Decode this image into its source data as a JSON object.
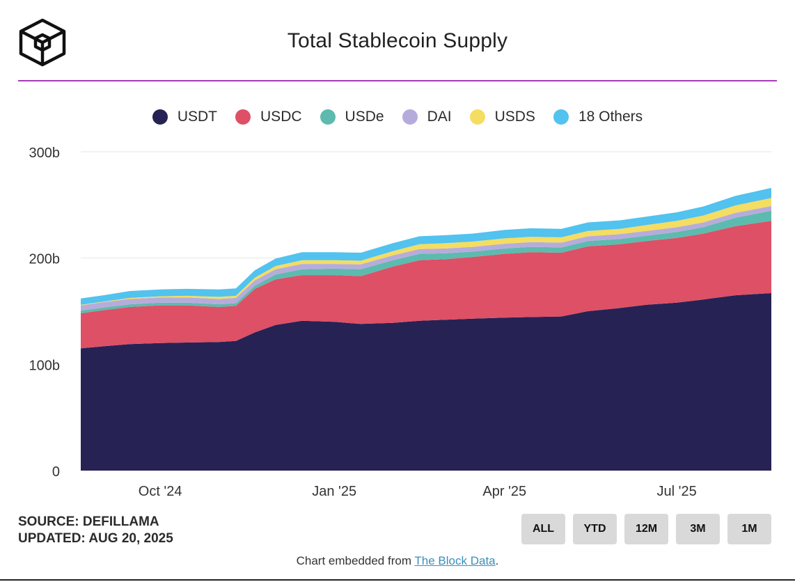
{
  "header": {
    "title": "Total Stablecoin Supply"
  },
  "footer": {
    "source": "SOURCE: DEFILLAMA",
    "updated": "UPDATED: AUG 20, 2025",
    "embed_prefix": "Chart embedded from ",
    "embed_link": "The Block Data",
    "embed_suffix": "."
  },
  "range_buttons": [
    "ALL",
    "YTD",
    "12M",
    "3M",
    "1M"
  ],
  "colors": {
    "USDT": "#272254",
    "USDC": "#dd5066",
    "USDe": "#5cbbae",
    "DAI": "#b6acdb",
    "USDS": "#f4dd61",
    "18 Others": "#52c2ee",
    "divider": "#a53bb7"
  },
  "chart_data": {
    "type": "area",
    "stacked": true,
    "title": "Total Stablecoin Supply",
    "x": [
      "2024-08-20",
      "2024-09-01",
      "2024-09-15",
      "2024-10-01",
      "2024-10-15",
      "2024-11-01",
      "2024-11-10",
      "2024-11-20",
      "2024-12-01",
      "2024-12-15",
      "2025-01-01",
      "2025-01-15",
      "2025-02-01",
      "2025-02-15",
      "2025-03-01",
      "2025-03-15",
      "2025-04-01",
      "2025-04-15",
      "2025-05-01",
      "2025-05-15",
      "2025-06-01",
      "2025-06-15",
      "2025-07-01",
      "2025-07-15",
      "2025-08-01",
      "2025-08-20"
    ],
    "series": [
      {
        "name": "USDT",
        "values": [
          115,
          117,
          119,
          120,
          120.5,
          121,
          122,
          130,
          137,
          141,
          140,
          138,
          139,
          141,
          142,
          143,
          144,
          144.5,
          145,
          150,
          153,
          156,
          158,
          161,
          165,
          167
        ]
      },
      {
        "name": "USDC",
        "values": [
          33,
          34,
          35,
          35.5,
          35,
          33,
          33,
          41,
          43,
          43,
          44,
          45,
          53,
          57,
          57,
          58,
          60,
          61,
          60,
          61,
          60,
          60,
          61,
          62,
          65,
          68
        ]
      },
      {
        "name": "USDe",
        "values": [
          2.5,
          2.5,
          2.5,
          2.5,
          2.5,
          2.5,
          2.5,
          3,
          4.5,
          5.5,
          6,
          6.5,
          6,
          6,
          5.5,
          5,
          5,
          5,
          5,
          5,
          5,
          5,
          5.5,
          6,
          8,
          9.5
        ]
      },
      {
        "name": "DAI",
        "values": [
          5,
          5,
          5,
          5,
          5,
          5,
          5,
          5,
          5,
          5,
          4.5,
          4.5,
          4.5,
          4.5,
          4.5,
          4.5,
          4.5,
          4.5,
          4.5,
          4.5,
          4.5,
          4.5,
          4.5,
          4.5,
          4.5,
          4.5
        ]
      },
      {
        "name": "USDS",
        "values": [
          0.5,
          0.5,
          1,
          1,
          1.5,
          2,
          2,
          2.5,
          3,
          3.5,
          3.5,
          3.5,
          4,
          4.5,
          5,
          5,
          5,
          5,
          5,
          5,
          5,
          5.5,
          6,
          6.5,
          7,
          7.5
        ]
      },
      {
        "name": "18 Others",
        "values": [
          6,
          6,
          6.5,
          6.5,
          6.5,
          7,
          7,
          7,
          7,
          7.5,
          7.5,
          7.5,
          7.5,
          7.5,
          7.5,
          7.5,
          8,
          8,
          8,
          8,
          8,
          8,
          8,
          8.5,
          9,
          9.5
        ]
      }
    ],
    "x_ticks": [
      {
        "label": "Oct '24",
        "date": "2024-10-01"
      },
      {
        "label": "Jan '25",
        "date": "2025-01-01"
      },
      {
        "label": "Apr '25",
        "date": "2025-04-01"
      },
      {
        "label": "Jul '25",
        "date": "2025-07-01"
      }
    ],
    "y_ticks": [
      {
        "label": "0",
        "value": 0
      },
      {
        "label": "100b",
        "value": 100
      },
      {
        "label": "200b",
        "value": 200
      },
      {
        "label": "300b",
        "value": 300
      }
    ],
    "ylim": [
      0,
      300
    ],
    "legend_position": "top-center",
    "grid": true
  }
}
